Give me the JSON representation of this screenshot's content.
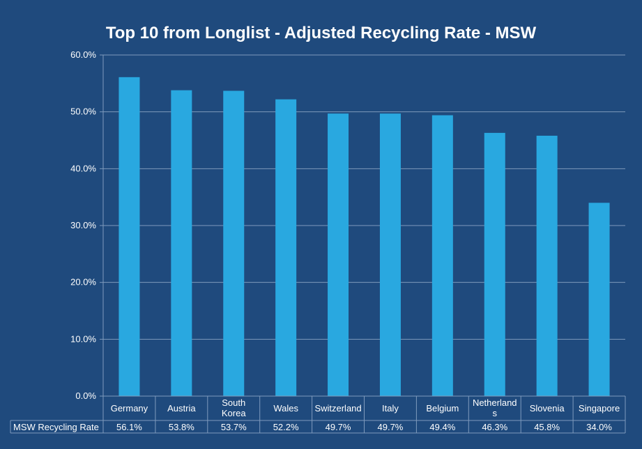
{
  "colors": {
    "background": "#1f4a7d",
    "bar": "#29a8e0",
    "gridline": "#7f9bbd",
    "text": "#ffffff"
  },
  "chart_data": {
    "type": "bar",
    "title": "Top 10 from Longlist - Adjusted Recycling Rate - MSW",
    "categories": [
      "Germany",
      "Austria",
      "South Korea",
      "Wales",
      "Switzerland",
      "Italy",
      "Belgium",
      "Netherlands",
      "Slovenia",
      "Singapore"
    ],
    "category_display_lines": [
      [
        "Germany"
      ],
      [
        "Austria"
      ],
      [
        "South",
        "Korea"
      ],
      [
        "Wales"
      ],
      [
        "Switzerland"
      ],
      [
        "Italy"
      ],
      [
        "Belgium"
      ],
      [
        "Netherland",
        "s"
      ],
      [
        "Slovenia"
      ],
      [
        "Singapore"
      ]
    ],
    "series": [
      {
        "name": "MSW Recycling Rate",
        "values": [
          56.1,
          53.8,
          53.7,
          52.2,
          49.7,
          49.7,
          49.4,
          46.3,
          45.8,
          34.0
        ],
        "labels": [
          "56.1%",
          "53.8%",
          "53.7%",
          "52.2%",
          "49.7%",
          "49.7%",
          "49.4%",
          "46.3%",
          "45.8%",
          "34.0%"
        ]
      }
    ],
    "ylim": [
      0,
      60
    ],
    "yticks": [
      0,
      10,
      20,
      30,
      40,
      50,
      60
    ],
    "ytick_labels": [
      "0.0%",
      "10.0%",
      "20.0%",
      "30.0%",
      "40.0%",
      "50.0%",
      "60.0%"
    ],
    "xlabel": "",
    "ylabel": "",
    "grid": true,
    "data_table": true
  }
}
